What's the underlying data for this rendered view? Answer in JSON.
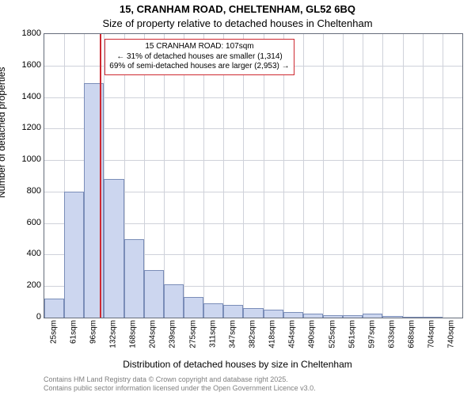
{
  "titles": {
    "main": "15, CRANHAM ROAD, CHELTENHAM, GL52 6BQ",
    "sub": "Size of property relative to detached houses in Cheltenham"
  },
  "axes": {
    "ylabel": "Number of detached properties",
    "xlabel": "Distribution of detached houses by size in Cheltenham"
  },
  "credits": {
    "line1": "Contains HM Land Registry data © Crown copyright and database right 2025.",
    "line2": "Contains public sector information licensed under the Open Government Licence v3.0."
  },
  "chart": {
    "type": "histogram",
    "background_color": "#ffffff",
    "border_color": "#666d7b",
    "grid_color": "#cfd2da",
    "bar_fill": "#ccd6ef",
    "bar_stroke": "#7a8db8",
    "marker_color": "#ce2931",
    "annot_border": "#ce2931",
    "ylim": [
      0,
      1800
    ],
    "ytick_step": 200,
    "yticks": [
      0,
      200,
      400,
      600,
      800,
      1000,
      1200,
      1400,
      1600,
      1800
    ],
    "xticks": [
      "25sqm",
      "61sqm",
      "96sqm",
      "132sqm",
      "168sqm",
      "204sqm",
      "239sqm",
      "275sqm",
      "311sqm",
      "347sqm",
      "382sqm",
      "418sqm",
      "454sqm",
      "490sqm",
      "525sqm",
      "561sqm",
      "597sqm",
      "633sqm",
      "668sqm",
      "704sqm",
      "740sqm"
    ],
    "bars": [
      120,
      800,
      1490,
      880,
      500,
      300,
      210,
      130,
      90,
      80,
      60,
      50,
      35,
      25,
      15,
      15,
      25,
      10,
      5,
      5,
      0
    ],
    "marker_value": 107,
    "xmin": 7,
    "xmax": 758
  },
  "annotation": {
    "line1": "15 CRANHAM ROAD: 107sqm",
    "line2": "← 31% of detached houses are smaller (1,314)",
    "line3": "69% of semi-detached houses are larger (2,953) →"
  }
}
